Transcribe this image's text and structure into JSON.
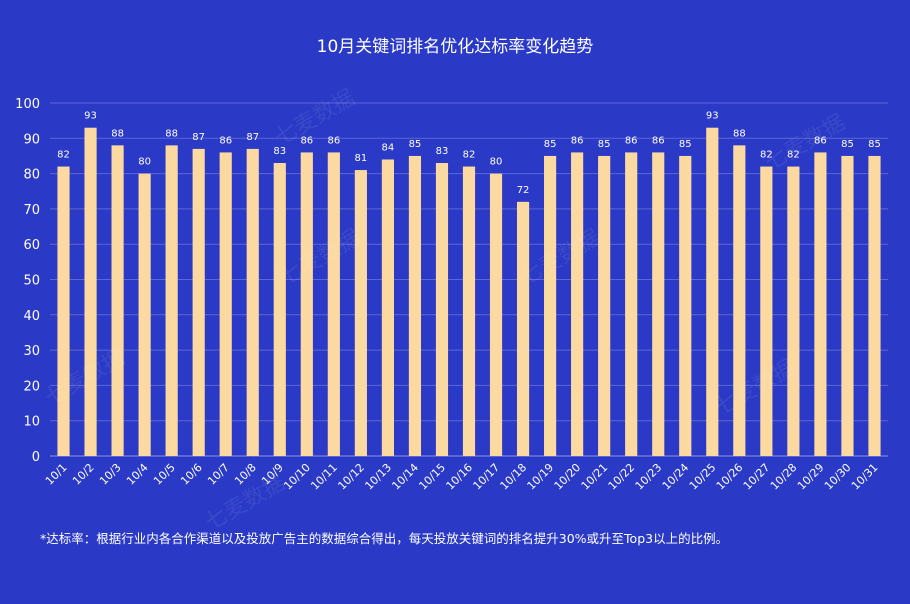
{
  "chart_data": {
    "type": "bar",
    "title": "10月关键词排名优化达标率变化趋势",
    "categories": [
      "10/1",
      "10/2",
      "10/3",
      "10/4",
      "10/5",
      "10/6",
      "10/7",
      "10/8",
      "10/9",
      "10/10",
      "10/11",
      "10/12",
      "10/13",
      "10/14",
      "10/15",
      "10/16",
      "10/17",
      "10/18",
      "10/19",
      "10/20",
      "10/21",
      "10/22",
      "10/23",
      "10/24",
      "10/25",
      "10/26",
      "10/27",
      "10/28",
      "10/29",
      "10/30",
      "10/31"
    ],
    "values": [
      82,
      93,
      88,
      80,
      88,
      87,
      86,
      87,
      83,
      86,
      86,
      81,
      84,
      85,
      83,
      82,
      80,
      72,
      85,
      86,
      85,
      86,
      86,
      85,
      93,
      88,
      82,
      82,
      86,
      85,
      85
    ],
    "ylim": [
      0,
      100
    ],
    "yticks": [
      0,
      10,
      20,
      30,
      40,
      50,
      60,
      70,
      80,
      90,
      100
    ],
    "grid": true,
    "legend": "none",
    "colors": {
      "background": "#2a39c6",
      "bar": "#fcd9a0",
      "grid": "#5a67d8",
      "text": "#ffffff"
    }
  },
  "footnote": "*达标率：根据行业内各合作渠道以及投放广告主的数据综合得出，每天投放关键词的排名提升30%或升至Top3以上的比例。",
  "watermark": "七麦数据"
}
